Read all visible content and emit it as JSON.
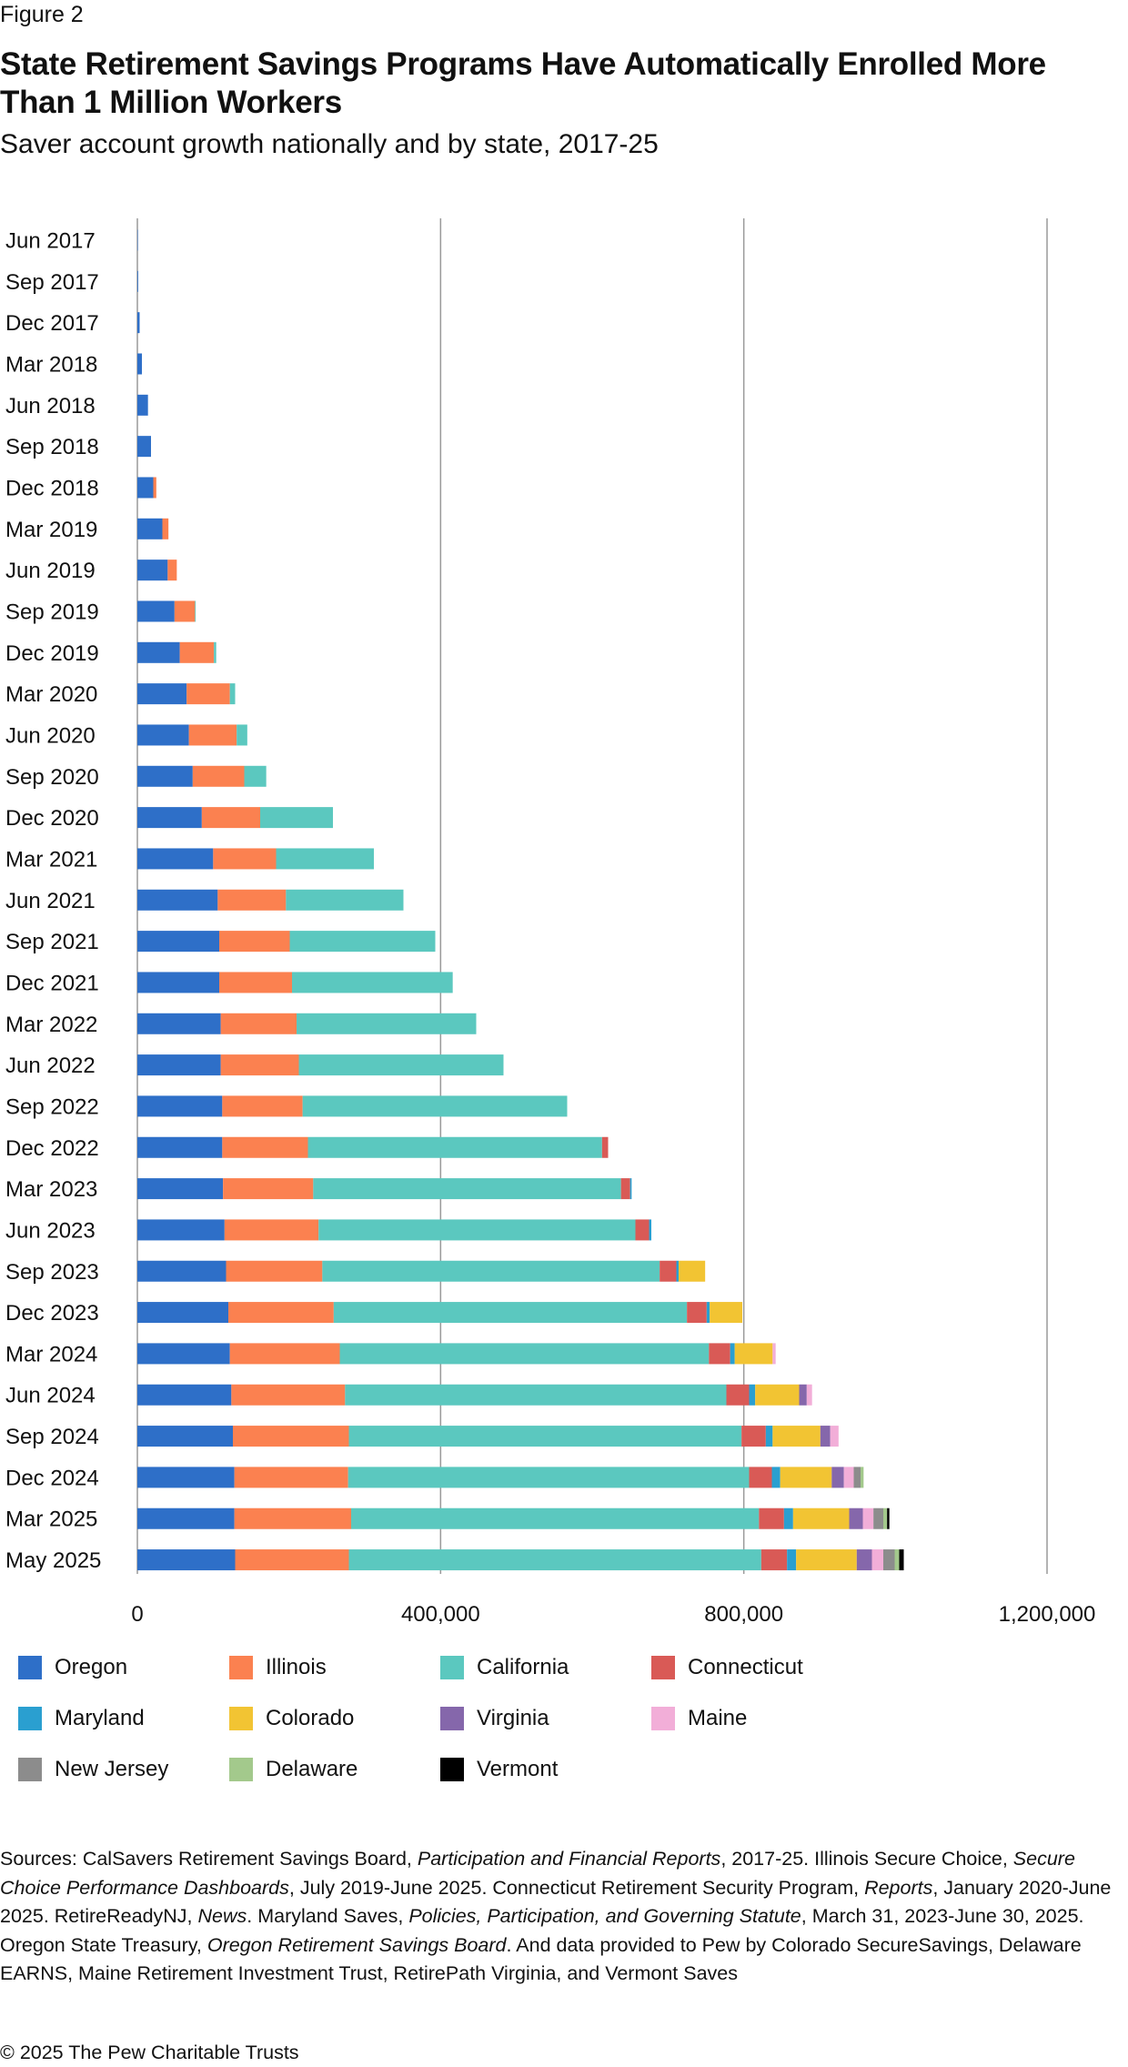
{
  "figure_label": "Figure 2",
  "title": "State Retirement Savings Programs Have Automatically Enrolled More Than 1 Million Workers",
  "subtitle": "Saver account growth nationally and by state, 2017-25",
  "chart_data": {
    "type": "bar",
    "orientation": "horizontal",
    "stacked": true,
    "title": "State Retirement Savings Programs Have Automatically Enrolled More Than 1 Million Workers",
    "subtitle": "Saver account growth nationally and by state, 2017-25",
    "xlabel": "",
    "ylabel": "",
    "xlim": [
      0,
      1200000
    ],
    "x_ticks": [
      0,
      400000,
      800000,
      1200000
    ],
    "x_tick_labels": [
      "0",
      "400,000",
      "800,000",
      "1,200,000"
    ],
    "grid": "vertical",
    "legend_position": "bottom",
    "categories": [
      "Jun 2017",
      "Sep 2017",
      "Dec 2017",
      "Mar 2018",
      "Jun 2018",
      "Sep 2018",
      "Dec 2018",
      "Mar 2019",
      "Jun 2019",
      "Sep 2019",
      "Dec 2019",
      "Mar 2020",
      "Jun 2020",
      "Sep 2020",
      "Dec 2020",
      "Mar 2021",
      "Jun 2021",
      "Sep 2021",
      "Dec 2021",
      "Mar 2022",
      "Jun 2022",
      "Sep 2022",
      "Dec 2022",
      "Mar 2023",
      "Jun 2023",
      "Sep 2023",
      "Dec 2023",
      "Mar 2024",
      "Jun 2024",
      "Sep 2024",
      "Dec 2024",
      "Mar 2025",
      "May 2025"
    ],
    "series": [
      {
        "name": "Oregon",
        "color": "#2e6fc8",
        "values": [
          200,
          1000,
          3000,
          6000,
          14000,
          18000,
          21000,
          33000,
          40000,
          49000,
          56000,
          65000,
          68000,
          73000,
          85000,
          100000,
          106000,
          108000,
          108000,
          110000,
          110000,
          112000,
          112000,
          113000,
          115000,
          117000,
          120000,
          122000,
          124000,
          126000,
          128000,
          128000,
          129000
        ]
      },
      {
        "name": "Illinois",
        "color": "#fb8150",
        "values": [
          0,
          0,
          0,
          0,
          0,
          0,
          4000,
          8000,
          12000,
          27000,
          45000,
          57000,
          63000,
          68000,
          77000,
          83000,
          90000,
          93000,
          96000,
          100000,
          103000,
          106000,
          113000,
          119000,
          124000,
          127000,
          139000,
          145000,
          150000,
          153000,
          150000,
          154000,
          150000
        ]
      },
      {
        "name": "California",
        "color": "#5bc8bf",
        "values": [
          0,
          0,
          0,
          0,
          0,
          0,
          0,
          0,
          0,
          1000,
          3000,
          7000,
          14000,
          29000,
          96000,
          129000,
          155000,
          192000,
          212000,
          237000,
          270000,
          349000,
          388000,
          406000,
          418000,
          445000,
          466000,
          487000,
          503000,
          518000,
          529000,
          538000,
          544000
        ]
      },
      {
        "name": "Connecticut",
        "color": "#d95a56",
        "values": [
          0,
          0,
          0,
          0,
          0,
          0,
          0,
          0,
          0,
          0,
          0,
          0,
          0,
          0,
          0,
          0,
          0,
          0,
          0,
          0,
          0,
          0,
          8000,
          12000,
          18000,
          22000,
          26000,
          28000,
          30000,
          32000,
          30000,
          33000,
          34000
        ]
      },
      {
        "name": "Maryland",
        "color": "#2a9fd0",
        "values": [
          0,
          0,
          0,
          0,
          0,
          0,
          0,
          0,
          0,
          0,
          0,
          0,
          0,
          0,
          0,
          0,
          0,
          0,
          0,
          0,
          0,
          0,
          0,
          2000,
          3000,
          3000,
          4000,
          6000,
          8000,
          9000,
          11000,
          12000,
          12000
        ]
      },
      {
        "name": "Colorado",
        "color": "#f2c433",
        "values": [
          0,
          0,
          0,
          0,
          0,
          0,
          0,
          0,
          0,
          0,
          0,
          0,
          0,
          0,
          0,
          0,
          0,
          0,
          0,
          0,
          0,
          0,
          0,
          0,
          0,
          35000,
          43000,
          50000,
          58000,
          63000,
          68000,
          74000,
          80000
        ]
      },
      {
        "name": "Virginia",
        "color": "#8567ab",
        "values": [
          0,
          0,
          0,
          0,
          0,
          0,
          0,
          0,
          0,
          0,
          0,
          0,
          0,
          0,
          0,
          0,
          0,
          0,
          0,
          0,
          0,
          0,
          0,
          0,
          0,
          0,
          0,
          0,
          10000,
          13000,
          16000,
          18000,
          20000
        ]
      },
      {
        "name": "Maine",
        "color": "#f2aed8",
        "values": [
          0,
          0,
          0,
          0,
          0,
          0,
          0,
          0,
          0,
          0,
          0,
          0,
          0,
          0,
          0,
          0,
          0,
          0,
          0,
          0,
          0,
          0,
          0,
          0,
          0,
          0,
          0,
          4000,
          7000,
          11000,
          13000,
          14000,
          15000
        ]
      },
      {
        "name": "New Jersey",
        "color": "#8c8c8c",
        "values": [
          0,
          0,
          0,
          0,
          0,
          0,
          0,
          0,
          0,
          0,
          0,
          0,
          0,
          0,
          0,
          0,
          0,
          0,
          0,
          0,
          0,
          0,
          0,
          0,
          0,
          0,
          0,
          0,
          0,
          0,
          9000,
          13000,
          15000
        ]
      },
      {
        "name": "Delaware",
        "color": "#a3c98c",
        "values": [
          0,
          0,
          0,
          0,
          0,
          0,
          0,
          0,
          0,
          0,
          0,
          0,
          0,
          0,
          0,
          0,
          0,
          0,
          0,
          0,
          0,
          0,
          0,
          0,
          0,
          0,
          0,
          0,
          0,
          0,
          4000,
          5000,
          6000
        ]
      },
      {
        "name": "Vermont",
        "color": "#000000",
        "values": [
          0,
          0,
          0,
          0,
          0,
          0,
          0,
          0,
          0,
          0,
          0,
          0,
          0,
          0,
          0,
          0,
          0,
          0,
          0,
          0,
          0,
          0,
          0,
          0,
          0,
          0,
          0,
          0,
          0,
          0,
          0,
          3000,
          6000
        ]
      }
    ]
  },
  "sources": {
    "p1": "Sources: CalSavers Retirement Savings Board, ",
    "i1": "Participation and Financial Reports",
    "p2": ", 2017-25. Illinois Secure Choice, ",
    "i2": "Secure Choice Performance Dashboards",
    "p3": ", July 2019-June 2025. Connecticut Retirement Security Program, ",
    "i3": "Reports",
    "p4": ", January 2020-June 2025. RetireReadyNJ, ",
    "i4": "News",
    "p5": ". Maryland Saves, ",
    "i5": "Policies, Participation, and Governing Statute",
    "p6": ", March 31, 2023-June 30, 2025. Oregon State Treasury, ",
    "i6": "Oregon Retirement Savings Board",
    "p7": ". And data provided to Pew by Colorado SecureSavings, Delaware EARNS, Maine Retirement Investment Trust, RetirePath Virginia, and Vermont Saves"
  },
  "copyright": "© 2025 The Pew Charitable Trusts"
}
